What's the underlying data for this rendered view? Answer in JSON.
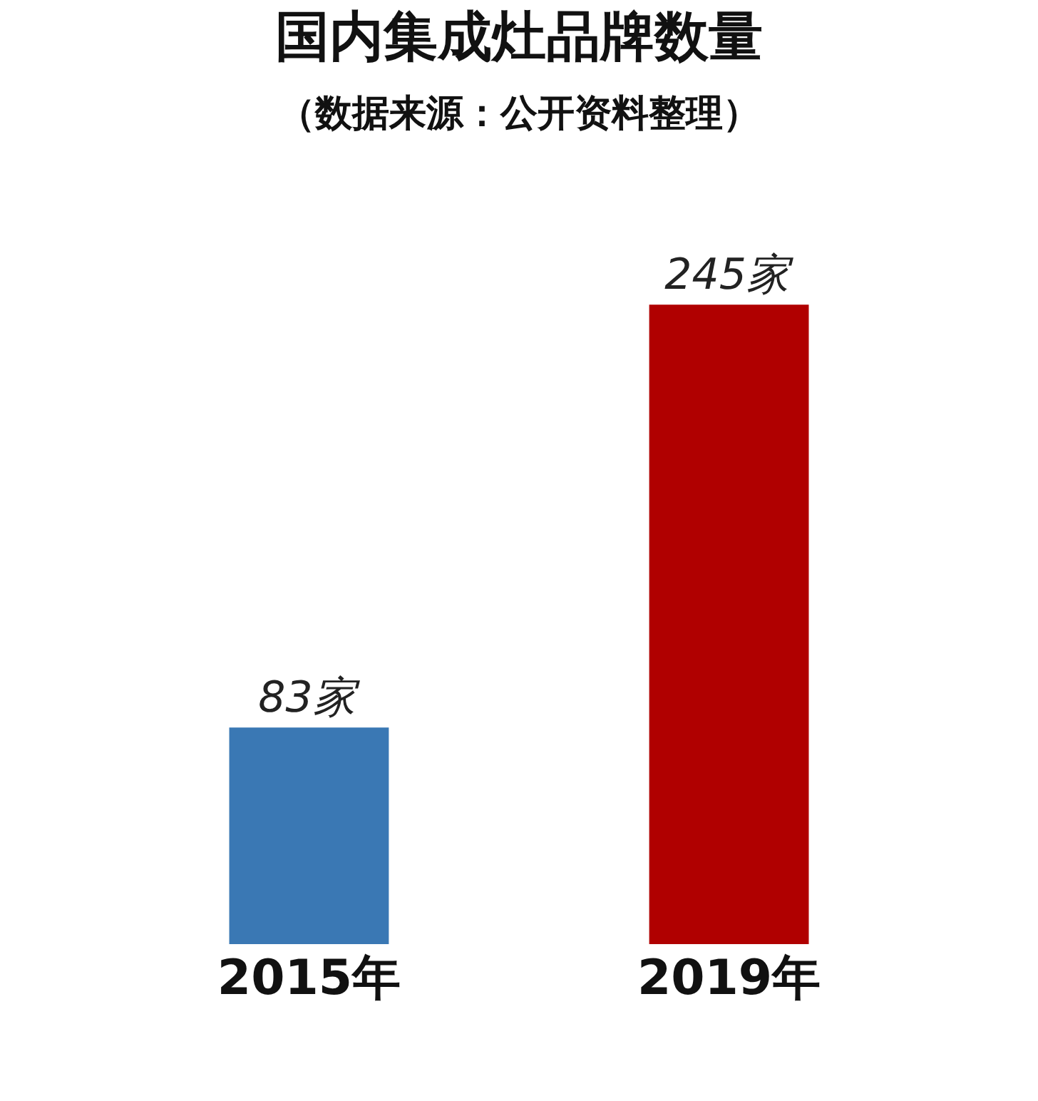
{
  "chart_data": {
    "type": "bar",
    "title": "国内集成灶品牌数量",
    "subtitle": "（数据来源：公开资料整理）",
    "categories": [
      "2015年",
      "2019年"
    ],
    "values": [
      83,
      245
    ],
    "colors": [
      "#3a78b4",
      "#b00000"
    ],
    "value_labels": [
      "83家",
      "245家"
    ],
    "tick_labels": "x",
    "legend": false
  }
}
